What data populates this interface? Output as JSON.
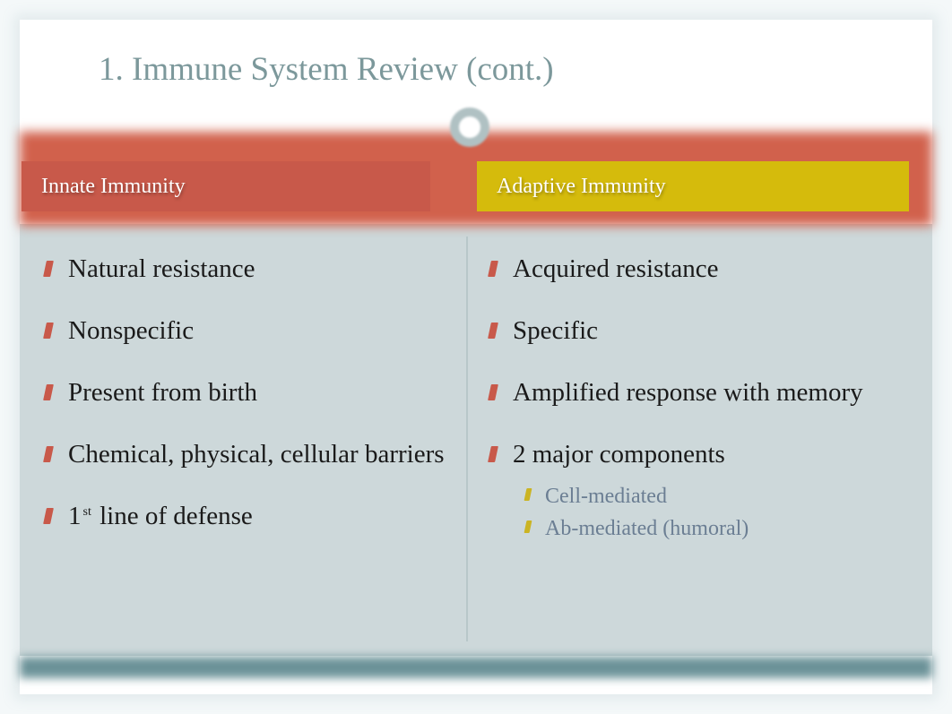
{
  "colors": {
    "page_bg": "#f4f8f9",
    "slide_bg": "#ffffff",
    "title_text": "#7c989b",
    "red_bar": "#d1614c",
    "header_left_bg": "#c8594a",
    "header_right_bg": "#d5bb0c",
    "header_text": "#ffffff",
    "body_bg": "#cdd8da",
    "divider": "#b8c7c9",
    "bullet_main": "#c8594a",
    "bullet_sub": "#cbb423",
    "body_text": "#1a1a1a",
    "sub_text": "#6b7e93",
    "footer_bar": "#6b9298"
  },
  "typography": {
    "family": "Georgia, Times New Roman, serif",
    "title_size_pt": 28,
    "header_size_pt": 18,
    "body_size_pt": 22,
    "sub_size_pt": 18
  },
  "layout": {
    "slide_width": 1018,
    "slide_height": 753,
    "columns": 2
  },
  "title": "1. Immune System Review (cont.)",
  "left": {
    "header": "Innate Immunity",
    "items": [
      "Natural resistance",
      "Nonspecific",
      "Present from birth",
      "Chemical, physical, cellular barriers"
    ],
    "ordinal_item": {
      "num": "1",
      "suffix": "st",
      "rest": " line of defense"
    }
  },
  "right": {
    "header": "Adaptive Immunity",
    "items": [
      "Acquired resistance",
      "Specific",
      "Amplified response with memory"
    ],
    "group": {
      "label": "2 major components",
      "subitems": [
        "Cell-mediated",
        "Ab-mediated (humoral)"
      ]
    }
  }
}
